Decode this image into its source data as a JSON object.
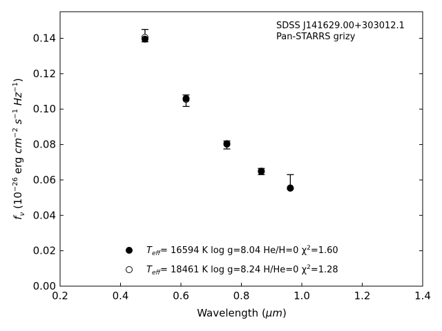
{
  "chart_data": {
    "type": "scatter",
    "xlabel": "Wavelength (μm)",
    "ylabel": "f_ν (10^-26 erg cm^-2 s^-1 Hz^-1)",
    "xlim": [
      0.2,
      1.4
    ],
    "ylim": [
      0.0,
      0.155
    ],
    "xticks": [
      0.2,
      0.4,
      0.6,
      0.8,
      1.0,
      1.2,
      1.4
    ],
    "xtick_labels": [
      "0.2",
      "0.4",
      "0.6",
      "0.8",
      "1.0",
      "1.2",
      "1.4"
    ],
    "yticks": [
      0.0,
      0.02,
      0.04,
      0.06,
      0.08,
      0.1,
      0.12,
      0.14
    ],
    "ytick_labels": [
      "0.00",
      "0.02",
      "0.04",
      "0.06",
      "0.08",
      "0.10",
      "0.12",
      "0.14"
    ],
    "annotation": [
      "SDSS J141629.00+303012.1",
      "Pan-STARRS grizy"
    ],
    "observed": [
      {
        "x": 0.481,
        "y": 0.1405,
        "err_low": 0.0025,
        "err_high": 0.0045
      },
      {
        "x": 0.617,
        "y": 0.105,
        "err_low": 0.0035,
        "err_high": 0.003
      },
      {
        "x": 0.752,
        "y": 0.08,
        "err_low": 0.0025,
        "err_high": 0.002
      },
      {
        "x": 0.866,
        "y": 0.065,
        "err_low": 0.002,
        "err_high": 0.0015
      },
      {
        "x": 0.962,
        "y": 0.0555,
        "err_low": 0.0005,
        "err_high": 0.0075
      }
    ],
    "series": [
      {
        "marker": "filled",
        "label_parts": [
          "T",
          "eff",
          "= 16594 K  log g=8.04  He/H=0  χ",
          "2",
          "=1.60"
        ],
        "x": [
          0.481,
          0.617,
          0.752,
          0.866,
          0.962
        ],
        "y": [
          0.1395,
          0.106,
          0.0805,
          0.0648,
          0.0553
        ]
      },
      {
        "marker": "open",
        "label_parts": [
          "T",
          "eff",
          "= 18461 K  log g=8.24  H/He=0  χ",
          "2",
          "=1.28"
        ],
        "x": [
          0.481,
          0.617,
          0.752,
          0.866,
          0.962
        ],
        "y": [
          0.1405,
          0.1055,
          0.0802,
          0.065,
          0.0555
        ]
      }
    ],
    "ylabel_parts": [
      "f",
      "ν",
      " (10",
      "−26",
      " erg ",
      "cm",
      "−2",
      " s",
      "−1",
      " Hz",
      "−1",
      ")"
    ],
    "xlabel_parts": [
      "Wavelength (",
      "μm",
      ")"
    ],
    "grid": false,
    "legend_position": "lower-center"
  }
}
